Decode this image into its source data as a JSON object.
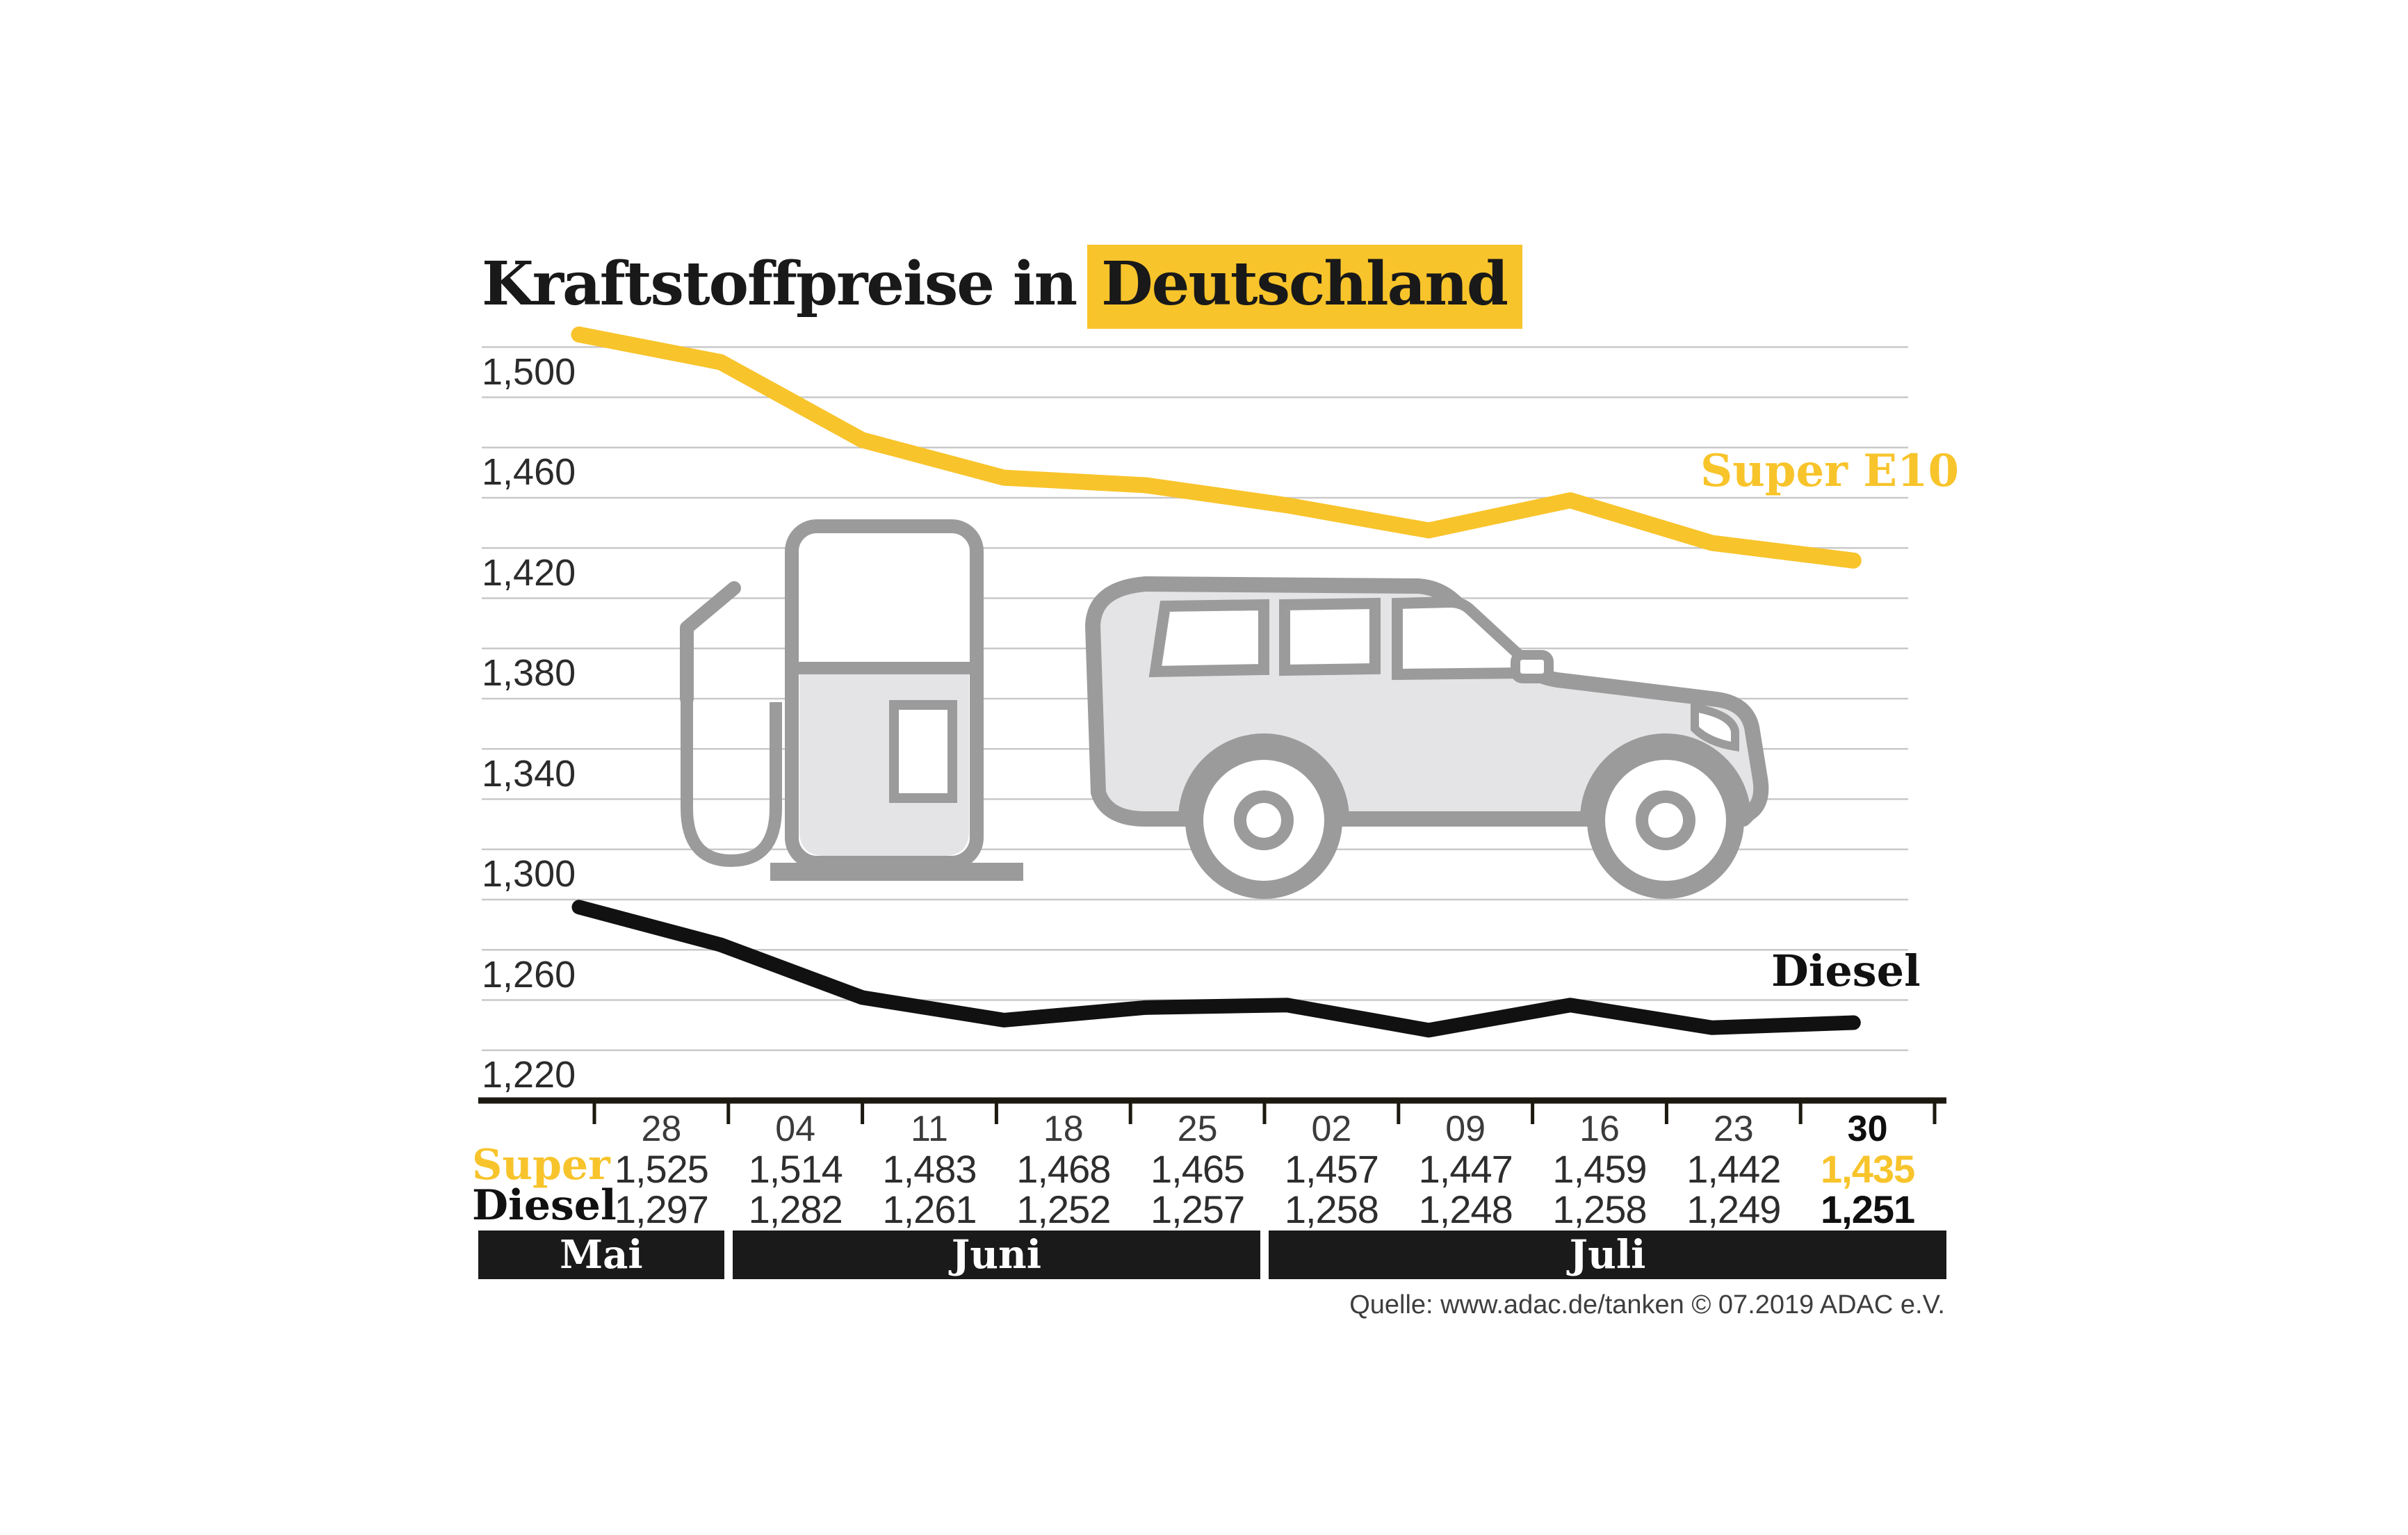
{
  "title": {
    "prefix": "Kraftstoffpreise in",
    "highlight": "Deutschland"
  },
  "source_note": "Quelle: www.adac.de/tanken   © 07.2019  ADAC e.V.",
  "colors": {
    "accent_yellow": "#F8C42B",
    "diesel_black": "#111111",
    "grid_line": "#C9C9C9",
    "axis_line": "#1C1A10",
    "month_band_bg": "#1A1A1A",
    "month_band_text": "#FFFFFF",
    "icon_stroke": "#9B9B9B",
    "icon_fill": "#E4E4E6",
    "label_text": "#2B2B2B"
  },
  "icons": [
    "fuel-pump-icon",
    "car-icon"
  ],
  "chart_data": {
    "type": "line",
    "title": "Kraftstoffpreise in Deutschland",
    "x_categories": [
      "28",
      "04",
      "11",
      "18",
      "25",
      "02",
      "09",
      "16",
      "23",
      "30"
    ],
    "month_groups": [
      {
        "label": "Mai",
        "tick_span": [
          0,
          1
        ]
      },
      {
        "label": "Juni",
        "tick_span": [
          1,
          5
        ]
      },
      {
        "label": "Juli",
        "tick_span": [
          5,
          10
        ]
      }
    ],
    "ylim": [
      1220,
      1520
    ],
    "y_grid_step": 20,
    "grid": true,
    "y_labeled_ticks": [
      1500,
      1460,
      1420,
      1380,
      1340,
      1300,
      1260,
      1220
    ],
    "y_tick_display": [
      "1,500",
      "1,460",
      "1,420",
      "1,380",
      "1,340",
      "1,300",
      "1,260",
      "1,220"
    ],
    "legend_position": "inline-right",
    "series": [
      {
        "name": "Super E10",
        "row_label": "Super",
        "color": "#F8C42B",
        "values": [
          1525,
          1514,
          1483,
          1468,
          1465,
          1457,
          1447,
          1459,
          1442,
          1435
        ],
        "display": [
          "1,525",
          "1,514",
          "1,483",
          "1,468",
          "1,465",
          "1,457",
          "1,447",
          "1,459",
          "1,442",
          "1,435"
        ]
      },
      {
        "name": "Diesel",
        "row_label": "Diesel",
        "color": "#111111",
        "values": [
          1297,
          1282,
          1261,
          1252,
          1257,
          1258,
          1248,
          1258,
          1249,
          1251
        ],
        "display": [
          "1,297",
          "1,282",
          "1,261",
          "1,252",
          "1,257",
          "1,258",
          "1,248",
          "1,258",
          "1,249",
          "1,251"
        ]
      }
    ],
    "last_column_emphasis": true
  }
}
